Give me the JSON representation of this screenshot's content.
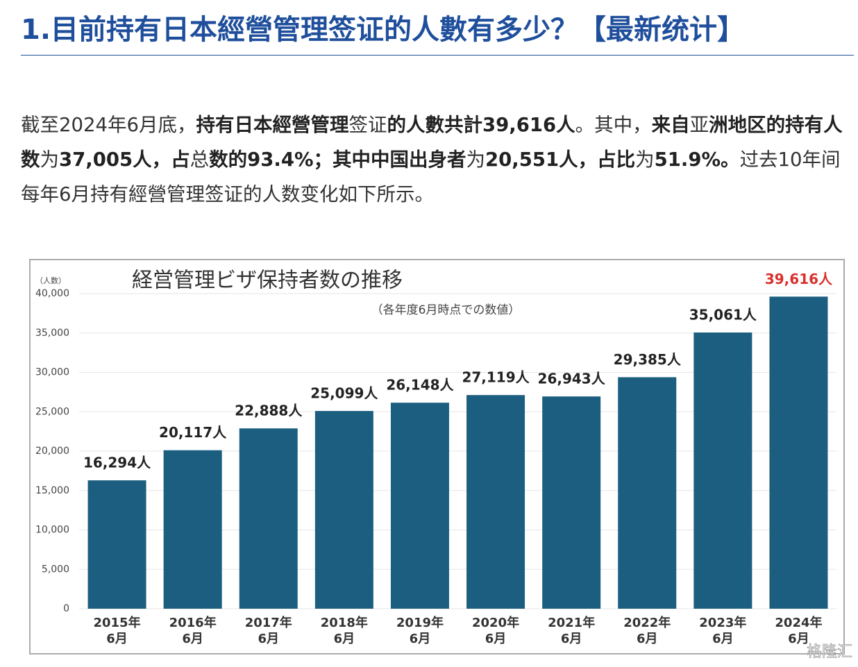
{
  "header": {
    "title": "1.目前持有日本經營管理签证的人數有多少？【最新统计】"
  },
  "paragraph": {
    "segments": [
      {
        "text": "截至2024年6月底，",
        "bold": false
      },
      {
        "text": "持有日本經營管理",
        "bold": true
      },
      {
        "text": "签证",
        "bold": false
      },
      {
        "text": "的人數共計39,616人",
        "bold": true
      },
      {
        "text": "。其中，",
        "bold": false
      },
      {
        "text": "来自",
        "bold": true
      },
      {
        "text": "亚",
        "bold": false
      },
      {
        "text": "洲地区的持有人数",
        "bold": true
      },
      {
        "text": "为",
        "bold": false
      },
      {
        "text": "37,005人，占",
        "bold": true
      },
      {
        "text": "总",
        "bold": false
      },
      {
        "text": "数的93.4%；其中中国出身者",
        "bold": true
      },
      {
        "text": "为",
        "bold": false
      },
      {
        "text": "20,551人，占比",
        "bold": true
      },
      {
        "text": "为",
        "bold": false
      },
      {
        "text": "51.9%。",
        "bold": true
      },
      {
        "text": "过去10年间每年6月持有經營管理签证的人数变化如下所示。",
        "bold": false
      }
    ]
  },
  "chart_data": {
    "type": "bar",
    "title": "経営管理ビザ保持者数の推移",
    "subtitle": "（各年度6月時点での数値）",
    "y_label": "（人数）",
    "categories": [
      [
        "2015年",
        "6月"
      ],
      [
        "2016年",
        "6月"
      ],
      [
        "2017年",
        "6月"
      ],
      [
        "2018年",
        "6月"
      ],
      [
        "2019年",
        "6月"
      ],
      [
        "2020年",
        "6月"
      ],
      [
        "2021年",
        "6月"
      ],
      [
        "2022年",
        "6月"
      ],
      [
        "2023年",
        "6月"
      ],
      [
        "2024年",
        "6月"
      ]
    ],
    "values": [
      16294,
      20117,
      22888,
      25099,
      26148,
      27119,
      26943,
      29385,
      35061,
      39616
    ],
    "value_labels": [
      "16,294人",
      "20,117人",
      "22,888人",
      "25,099人",
      "26,148人",
      "27,119人",
      "26,943人",
      "29,385人",
      "35,061人",
      "39,616人"
    ],
    "value_label_colors": [
      "#222",
      "#222",
      "#222",
      "#222",
      "#222",
      "#222",
      "#222",
      "#222",
      "#222",
      "#d9302c"
    ],
    "color": "#1b5e80",
    "ylim": [
      0,
      40000
    ],
    "yticks": [
      0,
      {
        "value": 5000,
        "label": "5,000"
      },
      {
        "value": 10000,
        "label": "10,000"
      },
      {
        "value": 15000,
        "label": "15,000"
      },
      {
        "value": 20000,
        "label": "20,000"
      },
      {
        "value": 25000,
        "label": "25,000"
      },
      {
        "value": 30000,
        "label": "30,000"
      },
      {
        "value": 35000,
        "label": "35,000"
      },
      {
        "value": 40000,
        "label": "40,000"
      }
    ],
    "grid": true
  },
  "watermark": "格隆汇"
}
